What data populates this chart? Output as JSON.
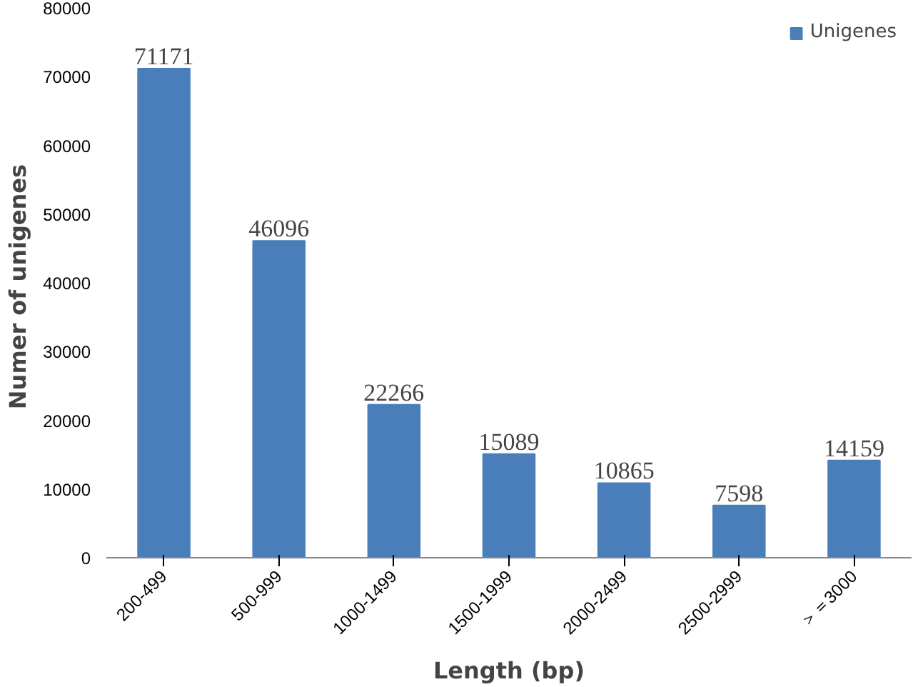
{
  "chart_data": {
    "type": "bar",
    "xlabel": "Length (bp)",
    "ylabel": "Numer of  unigenes",
    "categories": [
      "200-499",
      "500-999",
      "1000-1499",
      "1500-1999",
      "2000-2499",
      "2500-2999",
      "＞＝3000"
    ],
    "series": [
      {
        "name": "Unigenes",
        "color": "#4a7ebb",
        "values": [
          71171,
          46096,
          22266,
          15089,
          10865,
          7598,
          14159
        ]
      }
    ],
    "ylim": [
      0,
      80000
    ],
    "yticks": [
      0,
      10000,
      20000,
      30000,
      40000,
      50000,
      60000,
      70000,
      80000
    ],
    "data_labels": true,
    "legend": "top right",
    "grid": false
  }
}
